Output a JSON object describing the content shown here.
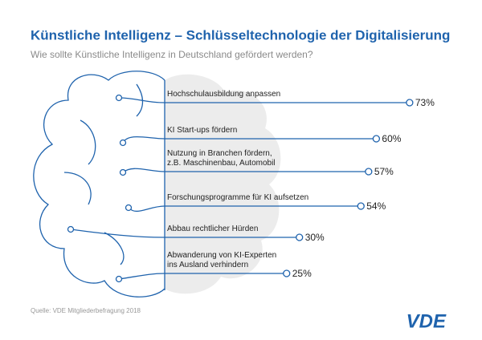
{
  "chart_data": {
    "type": "line-bar",
    "title": "Künstliche Intelligenz – Schlüsseltechnologie der Digitalisierung",
    "subtitle": "Wie sollte Künstliche Intelligenz in Deutschland gefördert werden?",
    "categories": [
      "Hochschulausbildung anpassen",
      "KI Start-ups fördern",
      "Nutzung in Branchen fördern,\nz.B. Maschinenbau, Automobil",
      "Forschungsprogramme für KI aufsetzen",
      "Abbau rechtlicher Hürden",
      "Abwanderung von KI-Experten\nins Ausland verhindern"
    ],
    "values": [
      73,
      60,
      57,
      54,
      30,
      25
    ],
    "value_labels": [
      "73%",
      "60%",
      "57%",
      "54%",
      "30%",
      "25%"
    ],
    "color": "#1f63ad",
    "source": "Quelle: VDE Mitgliederbefragung 2018",
    "logo": "VDE"
  }
}
